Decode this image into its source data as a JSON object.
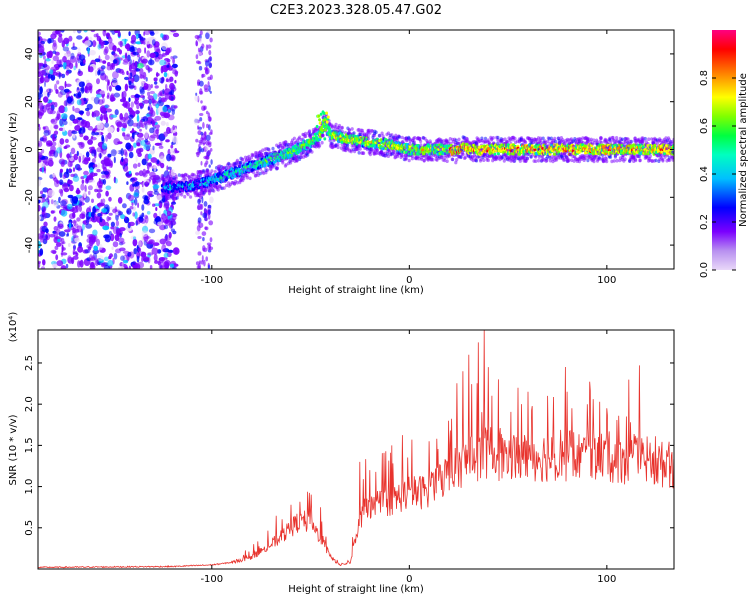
{
  "title": "C2E3.2023.328.05.47.G02",
  "chart_data": [
    {
      "type": "heatmap",
      "xlabel": "Height of straight line (km)",
      "ylabel": "Frequency (Hz)",
      "xlim": [
        -188,
        134
      ],
      "ylim": [
        -50,
        50
      ],
      "x_ticks": [
        -100,
        0,
        100
      ],
      "y_ticks": [
        -40,
        -20,
        0,
        20,
        40
      ],
      "colorbar": {
        "label": "Normalized spectral amplitude",
        "range": [
          0,
          1
        ],
        "ticks": [
          "0.0",
          "0.2",
          "0.4",
          "0.6",
          "0.8"
        ],
        "colors": [
          "#e9d8f8",
          "#7b00ff",
          "#0000ff",
          "#00bfff",
          "#00ff80",
          "#80ff00",
          "#ffff00",
          "#ff8000",
          "#ff0000",
          "#ff0080"
        ]
      },
      "ridge": {
        "x": [
          -120,
          -110,
          -100,
          -90,
          -80,
          -70,
          -60,
          -50,
          -45,
          -43,
          -40,
          -30,
          -20,
          -10,
          0,
          10,
          20,
          25,
          27,
          30,
          40,
          50,
          60,
          70,
          80,
          90,
          100,
          110,
          120,
          130
        ],
        "y": [
          -16,
          -15,
          -13,
          -10,
          -7,
          -4,
          -1,
          3,
          6,
          12,
          6,
          4,
          3,
          2,
          0,
          0,
          0,
          -1,
          2,
          0,
          0,
          0,
          0,
          0,
          0,
          0,
          0,
          0,
          0,
          0
        ]
      }
    },
    {
      "type": "line",
      "xlabel": "Height of straight line (km)",
      "ylabel": "SNR (10 * v/v)",
      "y_scale_label": "(x10⁴)",
      "xlim": [
        -188,
        134
      ],
      "ylim": [
        0,
        2.9
      ],
      "x_ticks": [
        -100,
        0,
        100
      ],
      "y_ticks": [
        0.5,
        1.0,
        1.5,
        2.0,
        2.5
      ],
      "color": "#e8332d",
      "envelope": {
        "x": [
          -188,
          -120,
          -100,
          -90,
          -80,
          -70,
          -60,
          -55,
          -50,
          -45,
          -40,
          -35,
          -30,
          -25,
          -22,
          -20,
          -15,
          -10,
          -5,
          0,
          5,
          10,
          15,
          20,
          25,
          30,
          35,
          40,
          45,
          50,
          60,
          70,
          80,
          90,
          100,
          110,
          120,
          125,
          130,
          134
        ],
        "y": [
          0.02,
          0.03,
          0.05,
          0.08,
          0.15,
          0.3,
          0.5,
          0.62,
          0.55,
          0.4,
          0.15,
          0.05,
          0.08,
          0.6,
          0.85,
          0.75,
          0.8,
          0.85,
          0.9,
          0.95,
          0.95,
          1.0,
          1.1,
          1.2,
          1.3,
          1.35,
          1.4,
          1.45,
          1.4,
          1.4,
          1.4,
          1.4,
          1.4,
          1.4,
          1.4,
          1.35,
          1.35,
          1.3,
          1.3,
          1.3
        ]
      },
      "peaks": {
        "x": [
          -60,
          -50,
          -45,
          -25,
          -20,
          10,
          20,
          27,
          30,
          35,
          38,
          40,
          45,
          55,
          60,
          70,
          80,
          90,
          100,
          110
        ],
        "y": [
          0.78,
          0.72,
          0.75,
          1.3,
          1.2,
          1.55,
          1.8,
          2.4,
          2.6,
          2.75,
          2.9,
          2.45,
          2.3,
          2.2,
          2.15,
          2.1,
          2.15,
          2.0,
          1.95,
          1.85
        ]
      }
    }
  ]
}
